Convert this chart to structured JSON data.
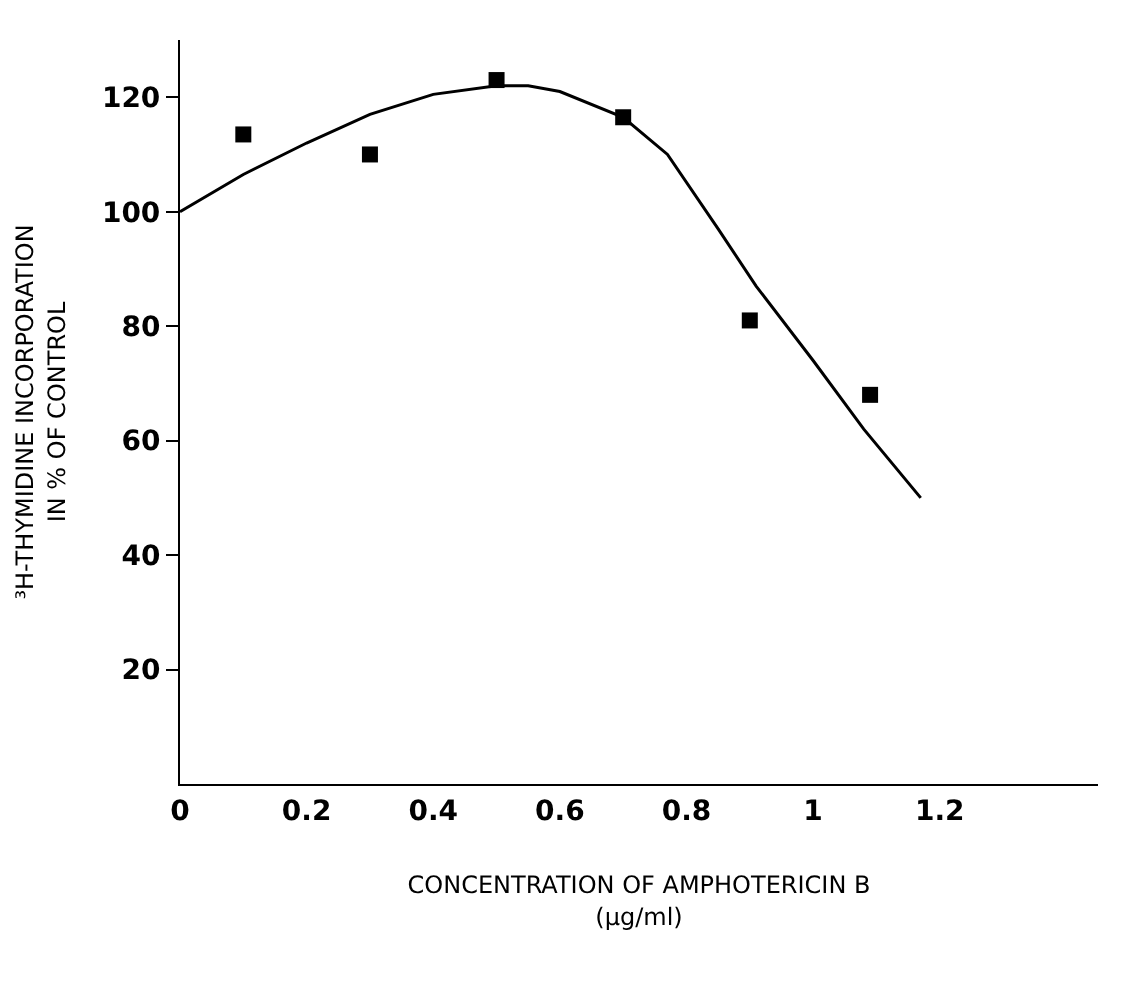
{
  "chart_data": {
    "type": "scatter",
    "xlabel": "CONCENTRATION OF AMPHOTERICIN B\n(µg/ml)",
    "ylabel": "³H-THYMIDINE INCORPORATION\nIN % OF CONTROL",
    "series": [
      {
        "type": "scatter",
        "color": "#000000",
        "marker": "square",
        "x": [
          0.1,
          0.3,
          0.5,
          0.7,
          0.9,
          1.09
        ],
        "values": [
          113.5,
          110,
          123,
          116.5,
          81,
          68
        ]
      },
      {
        "type": "line",
        "color": "#000000",
        "marker": "none",
        "line_style": "solid",
        "x": [
          0,
          0.1,
          0.2,
          0.3,
          0.4,
          0.5,
          0.55,
          0.6,
          0.7,
          0.77,
          0.85,
          0.91,
          1.0,
          1.08,
          1.17
        ],
        "values": [
          100,
          106.5,
          112,
          117,
          120.5,
          122,
          122,
          121,
          116.5,
          110,
          97,
          87,
          74,
          62,
          50
        ]
      }
    ],
    "xlim": [
      0,
      1.45
    ],
    "ylim": [
      0,
      130
    ],
    "xticks": [
      0,
      0.2,
      0.4,
      0.6,
      0.8,
      1,
      1.2
    ],
    "yticks": [
      20,
      40,
      60,
      80,
      100,
      120
    ],
    "grid": false
  }
}
